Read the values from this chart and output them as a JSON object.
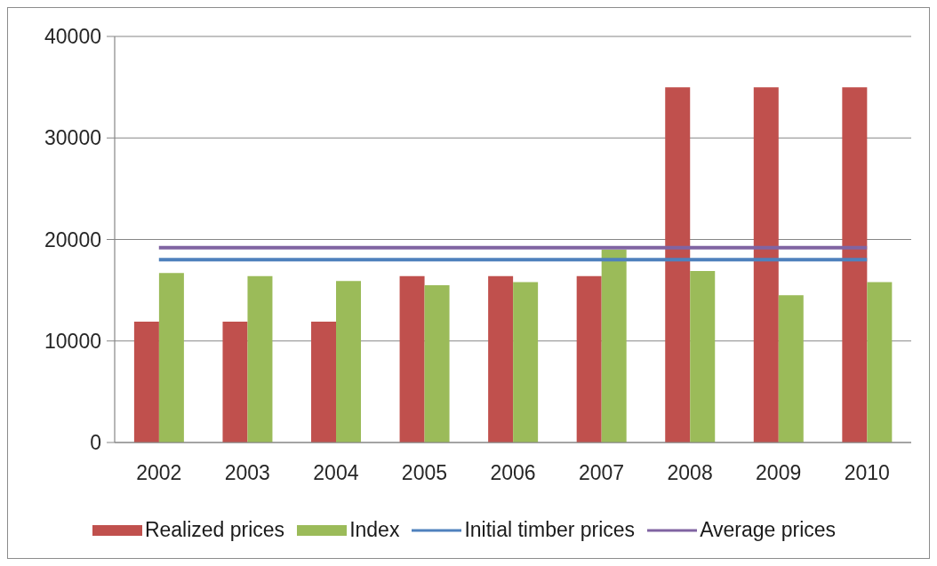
{
  "chart_data": {
    "type": "bar",
    "categories": [
      "2002",
      "2003",
      "2004",
      "2005",
      "2006",
      "2007",
      "2008",
      "2009",
      "2010"
    ],
    "series": [
      {
        "name": "Realized prices",
        "color": "#c0504d",
        "values": [
          11900,
          11900,
          11900,
          16400,
          16400,
          16400,
          35000,
          35000,
          35000
        ]
      },
      {
        "name": "Index",
        "color": "#9bbb59",
        "values": [
          16700,
          16400,
          15900,
          15500,
          15800,
          19000,
          16900,
          14500,
          15800
        ]
      },
      {
        "name": "Initial timber prices",
        "type": "line",
        "color": "#4f81bd",
        "values": [
          18000,
          18000,
          18000,
          18000,
          18000,
          18000,
          18000,
          18000,
          18000
        ]
      },
      {
        "name": "Average prices",
        "type": "line",
        "color": "#8064a2",
        "values": [
          19200,
          19200,
          19200,
          19200,
          19200,
          19200,
          19200,
          19200,
          19200
        ]
      }
    ],
    "ylim": [
      0,
      40000
    ],
    "yticks": [
      0,
      10000,
      20000,
      30000,
      40000
    ],
    "grid": "y",
    "legend": "bottom",
    "marker": "none"
  }
}
